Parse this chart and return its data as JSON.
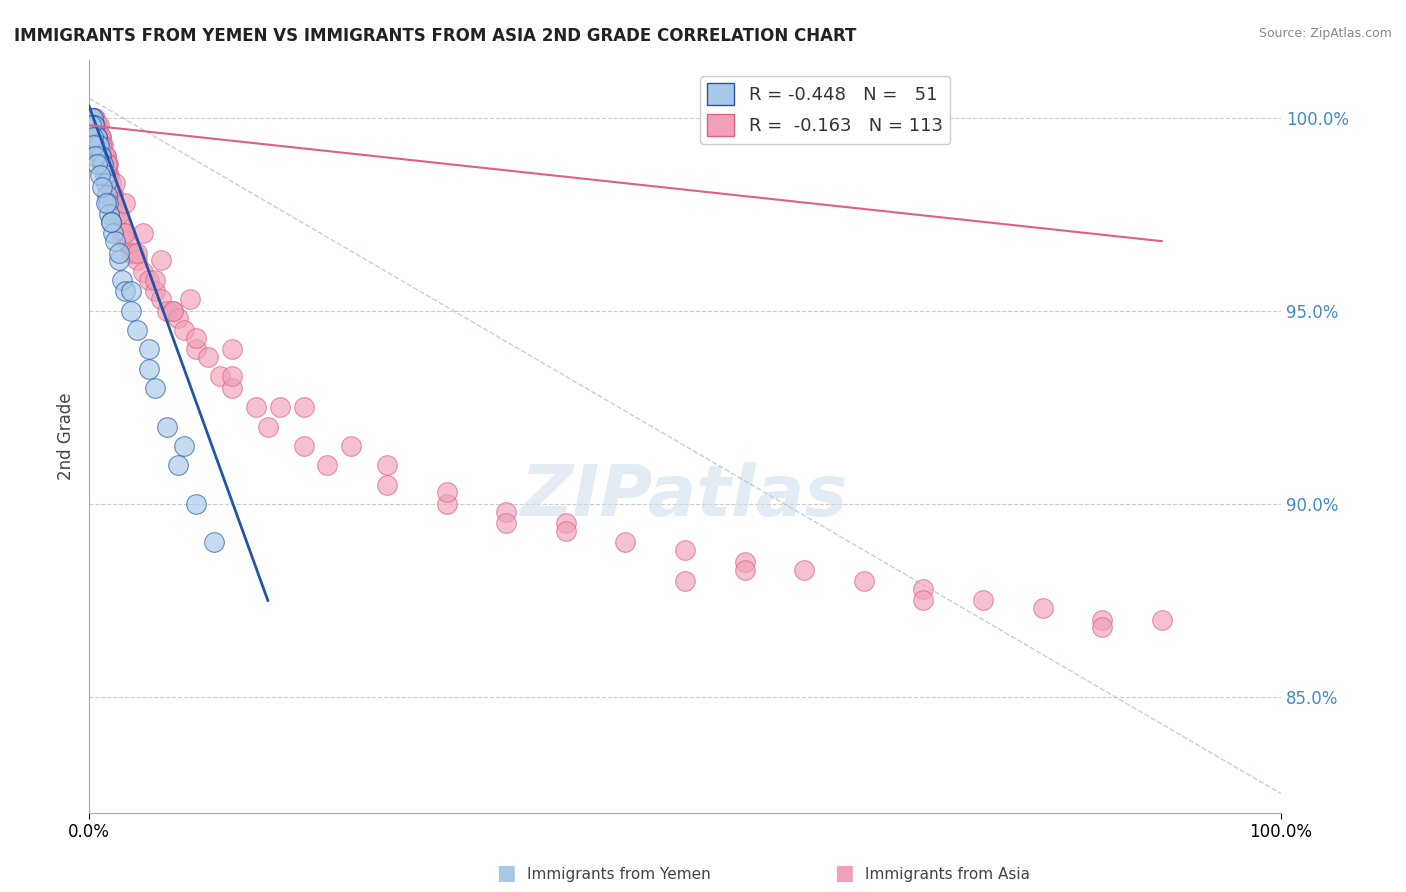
{
  "title": "IMMIGRANTS FROM YEMEN VS IMMIGRANTS FROM ASIA 2ND GRADE CORRELATION CHART",
  "source_text": "Source: ZipAtlas.com",
  "ylabel": "2nd Grade",
  "color_yemen": "#A8C8E8",
  "color_asia": "#F0A0B8",
  "color_line_yemen": "#2255AA",
  "color_line_asia": "#E06080",
  "color_grid": "#CCCCCC",
  "watermark": "ZIPatlas",
  "background_color": "#FFFFFF",
  "ylim_min": 82.0,
  "ylim_max": 101.5,
  "xlim_min": 0.0,
  "xlim_max": 100.0,
  "yticks": [
    85.0,
    90.0,
    95.0,
    100.0
  ],
  "yemen_x": [
    0.1,
    0.15,
    0.2,
    0.25,
    0.3,
    0.35,
    0.4,
    0.45,
    0.5,
    0.55,
    0.6,
    0.65,
    0.7,
    0.75,
    0.8,
    0.9,
    1.0,
    1.1,
    1.2,
    1.3,
    1.4,
    1.5,
    1.6,
    1.7,
    1.8,
    2.0,
    2.2,
    2.5,
    2.8,
    3.0,
    3.5,
    4.0,
    5.0,
    5.5,
    6.5,
    7.5,
    9.0,
    10.5,
    0.2,
    0.3,
    0.4,
    0.5,
    0.7,
    0.9,
    1.1,
    1.4,
    1.8,
    2.5,
    3.5,
    5.0,
    8.0
  ],
  "yemen_y": [
    100.0,
    100.0,
    100.0,
    100.0,
    100.0,
    99.8,
    99.8,
    99.8,
    99.5,
    99.5,
    99.5,
    99.5,
    99.5,
    99.3,
    99.3,
    99.0,
    99.0,
    98.8,
    98.8,
    98.5,
    98.3,
    98.0,
    97.8,
    97.5,
    97.3,
    97.0,
    96.8,
    96.3,
    95.8,
    95.5,
    95.0,
    94.5,
    93.5,
    93.0,
    92.0,
    91.0,
    90.0,
    89.0,
    99.8,
    99.5,
    99.3,
    99.0,
    98.8,
    98.5,
    98.2,
    97.8,
    97.3,
    96.5,
    95.5,
    94.0,
    91.5
  ],
  "asia_x": [
    0.1,
    0.15,
    0.2,
    0.25,
    0.3,
    0.35,
    0.4,
    0.45,
    0.5,
    0.5,
    0.6,
    0.6,
    0.7,
    0.7,
    0.8,
    0.8,
    0.9,
    0.9,
    1.0,
    1.0,
    1.0,
    1.1,
    1.1,
    1.2,
    1.2,
    1.3,
    1.3,
    1.4,
    1.4,
    1.5,
    1.5,
    1.6,
    1.6,
    1.7,
    1.8,
    1.9,
    2.0,
    2.0,
    2.1,
    2.2,
    2.3,
    2.5,
    2.7,
    2.8,
    3.0,
    3.2,
    3.5,
    3.8,
    4.0,
    4.5,
    5.0,
    5.5,
    6.0,
    6.5,
    7.0,
    7.5,
    8.0,
    9.0,
    10.0,
    11.0,
    12.0,
    14.0,
    15.0,
    18.0,
    20.0,
    25.0,
    30.0,
    35.0,
    40.0,
    45.0,
    50.0,
    55.0,
    60.0,
    65.0,
    70.0,
    75.0,
    80.0,
    85.0,
    90.0,
    0.6,
    0.8,
    1.0,
    1.2,
    1.5,
    2.0,
    2.5,
    3.0,
    4.0,
    5.5,
    7.0,
    9.0,
    12.0,
    16.0,
    22.0,
    30.0,
    40.0,
    55.0,
    70.0,
    85.0,
    0.5,
    0.7,
    1.0,
    1.5,
    2.2,
    3.0,
    4.5,
    6.0,
    8.5,
    12.0,
    18.0,
    25.0,
    35.0,
    50.0
  ],
  "asia_y": [
    100.0,
    100.0,
    100.0,
    100.0,
    100.0,
    100.0,
    100.0,
    100.0,
    100.0,
    99.8,
    99.8,
    99.8,
    99.8,
    99.8,
    99.8,
    99.5,
    99.5,
    99.5,
    99.5,
    99.5,
    99.3,
    99.3,
    99.3,
    99.3,
    99.0,
    99.0,
    99.0,
    99.0,
    99.0,
    98.8,
    98.8,
    98.8,
    98.5,
    98.5,
    98.3,
    98.0,
    98.0,
    97.8,
    97.8,
    97.5,
    97.5,
    97.3,
    97.0,
    97.0,
    97.0,
    96.8,
    96.5,
    96.5,
    96.3,
    96.0,
    95.8,
    95.5,
    95.3,
    95.0,
    95.0,
    94.8,
    94.5,
    94.0,
    93.8,
    93.3,
    93.0,
    92.5,
    92.0,
    91.5,
    91.0,
    90.5,
    90.0,
    89.8,
    89.5,
    89.0,
    88.8,
    88.5,
    88.3,
    88.0,
    87.8,
    87.5,
    87.3,
    87.0,
    87.0,
    99.5,
    99.3,
    99.0,
    98.8,
    98.5,
    98.0,
    97.5,
    97.0,
    96.5,
    95.8,
    95.0,
    94.3,
    93.3,
    92.5,
    91.5,
    90.3,
    89.3,
    88.3,
    87.5,
    86.8,
    99.8,
    99.5,
    99.3,
    98.8,
    98.3,
    97.8,
    97.0,
    96.3,
    95.3,
    94.0,
    92.5,
    91.0,
    89.5,
    88.0
  ],
  "blue_line_x": [
    0.0,
    15.0
  ],
  "blue_line_y": [
    100.3,
    87.5
  ],
  "pink_line_x": [
    0.0,
    90.0
  ],
  "pink_line_y": [
    99.8,
    96.8
  ],
  "dash_line_x": [
    0.0,
    100.0
  ],
  "dash_line_y": [
    100.5,
    82.5
  ]
}
